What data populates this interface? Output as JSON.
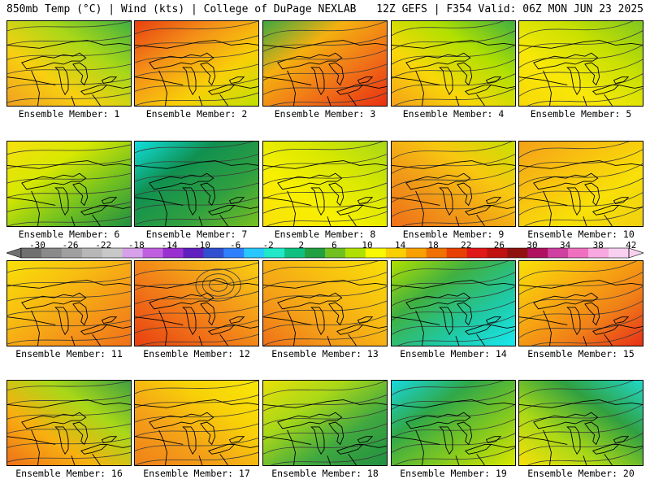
{
  "header": {
    "left": "850mb Temp (°C) | Wind (kts) | College of DuPage NEXLAB",
    "right": "12Z GEFS | F354 Valid: 06Z MON JUN 23 2025"
  },
  "colorbar": {
    "labels": [
      "-30",
      "-26",
      "-22",
      "-18",
      "-14",
      "-10",
      "-6",
      "-2",
      "2",
      "6",
      "10",
      "14",
      "18",
      "22",
      "26",
      "30",
      "34",
      "38",
      "42"
    ],
    "colors": [
      "#707070",
      "#8a8a8a",
      "#a0a0a0",
      "#b7b7b7",
      "#c8c8c8",
      "#d7a0e8",
      "#c060e0",
      "#9a30d0",
      "#6020c0",
      "#3050d0",
      "#2e80ff",
      "#28c8ff",
      "#20e8c8",
      "#10c080",
      "#20a040",
      "#70c020",
      "#b0e000",
      "#f8f800",
      "#f8d000",
      "#f8a000",
      "#f07000",
      "#e84000",
      "#e01818",
      "#c01010",
      "#901010",
      "#b01060",
      "#d040a0",
      "#f070c0",
      "#f8a8e0",
      "#f8d0f0"
    ]
  },
  "members": [
    {
      "caption": "Ensemble Member: 1",
      "fill": [
        "#f0a020",
        "#f8d010",
        "#a8d818",
        "#40b040"
      ]
    },
    {
      "caption": "Ensemble Member: 2",
      "fill": [
        "#e84010",
        "#f49018",
        "#f8d008",
        "#c0e000"
      ]
    },
    {
      "caption": "Ensemble Member: 3",
      "fill": [
        "#e83010",
        "#f07018",
        "#f4b010",
        "#40a840"
      ]
    },
    {
      "caption": "Ensemble Member: 4",
      "fill": [
        "#f4a018",
        "#f8d808",
        "#b0e000",
        "#40b040"
      ]
    },
    {
      "caption": "Ensemble Member: 5",
      "fill": [
        "#f8d808",
        "#f8e808",
        "#c8e000",
        "#80c820"
      ]
    },
    {
      "caption": "Ensemble Member: 6",
      "fill": [
        "#f8e010",
        "#d8e800",
        "#70c020",
        "#209040"
      ]
    },
    {
      "caption": "Ensemble Member: 7",
      "fill": [
        "#78c020",
        "#30a040",
        "#109050",
        "#10e0e0"
      ]
    },
    {
      "caption": "Ensemble Member: 8",
      "fill": [
        "#f8e008",
        "#f8f000",
        "#d8e800",
        "#a8d818"
      ]
    },
    {
      "caption": "Ensemble Member: 9",
      "fill": [
        "#f07018",
        "#f09818",
        "#f8c810",
        "#c8e000"
      ]
    },
    {
      "caption": "Ensemble Member: 10",
      "fill": [
        "#f4a018",
        "#f8c010",
        "#f8e008",
        "#f0d010"
      ]
    },
    {
      "caption": "Ensemble Member: 11",
      "fill": [
        "#f07018",
        "#f49818",
        "#f8c010",
        "#f8e008"
      ]
    },
    {
      "caption": "Ensemble Member: 12",
      "fill": [
        "#e84010",
        "#f07018",
        "#f4a018",
        "#f8d010"
      ]
    },
    {
      "caption": "Ensemble Member: 13",
      "fill": [
        "#f07018",
        "#f4a018",
        "#f8c010",
        "#f8e008"
      ]
    },
    {
      "caption": "Ensemble Member: 14",
      "fill": [
        "#b0e000",
        "#40b040",
        "#20c8a0",
        "#18e8f0"
      ]
    },
    {
      "caption": "Ensemble Member: 15",
      "fill": [
        "#e83018",
        "#f08018",
        "#f8b010",
        "#f8e008"
      ]
    },
    {
      "caption": "Ensemble Member: 16",
      "fill": [
        "#f07018",
        "#f8b010",
        "#a8d818",
        "#40a040"
      ]
    },
    {
      "caption": "Ensemble Member: 17",
      "fill": [
        "#f08018",
        "#f4a018",
        "#f8d008",
        "#f8e808"
      ]
    },
    {
      "caption": "Ensemble Member: 18",
      "fill": [
        "#e8e008",
        "#a8d818",
        "#40a840",
        "#209040"
      ]
    },
    {
      "caption": "Ensemble Member: 19",
      "fill": [
        "#d8e800",
        "#80c820",
        "#30a848",
        "#18d8e0"
      ]
    },
    {
      "caption": "Ensemble Member: 20",
      "fill": [
        "#f8e008",
        "#a8d818",
        "#30a040",
        "#20d8c8"
      ]
    }
  ]
}
